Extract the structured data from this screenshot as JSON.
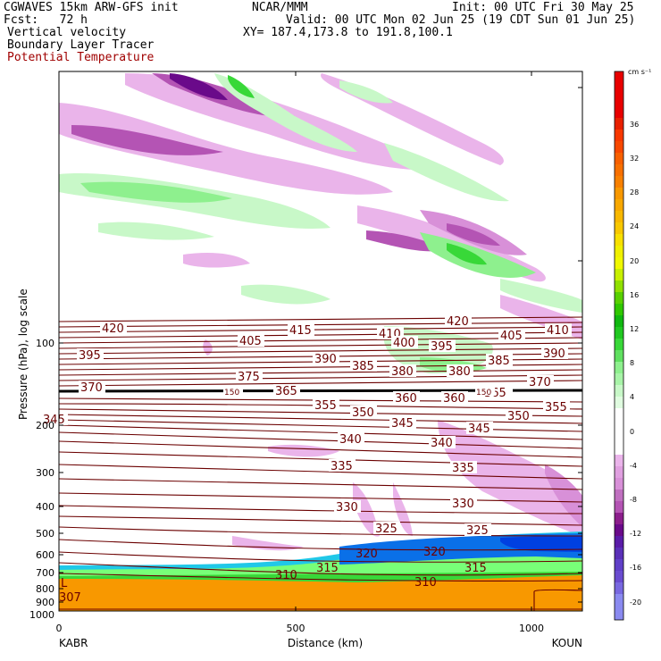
{
  "header": {
    "model": "CGWAVES 15km ARW-GFS init",
    "fcst": "Fcst:   72 h",
    "org": "NCAR/MMM",
    "init": "Init: 00 UTC Fri 30 May 25",
    "valid": "Valid: 00 UTC Mon 02 Jun 25 (19 CDT Sun 01 Jun 25)",
    "xy": "XY= 187.4,173.8 to 191.8,100.1",
    "field1": "Vertical velocity",
    "field2": "Boundary Layer Tracer",
    "field3": "Potential Temperature"
  },
  "colors": {
    "theta": "#6b0000",
    "positive": [
      "#ffffff",
      "#c8f8c8",
      "#8ef08e",
      "#38d838",
      "#10b810",
      "#f0f000",
      "#f8c800",
      "#f89800",
      "#f86000",
      "#e82000",
      "#e80000"
    ],
    "negative": [
      "#ffffff",
      "#eab4ea",
      "#d890d8",
      "#b454b4",
      "#8c1e8c",
      "#6a0a8a",
      "#5a1ca8",
      "#6a4cd0",
      "#8a8af0"
    ],
    "tracer": [
      "#78ff78",
      "#20c8e8",
      "#0a70e8",
      "#0040e0"
    ],
    "orange": "#f89800"
  },
  "chart_data": {
    "type": "heatmap",
    "title": "Vertical velocity / Boundary Layer Tracer / Potential Temperature",
    "xlabel": "Distance (km)",
    "ylabel": "Pressure (hPa), log scale",
    "x_ticks": [
      "0",
      "500",
      "1000"
    ],
    "x_endpoints": [
      "KABR",
      "KOUN"
    ],
    "y_ticks": [
      "100",
      "200",
      "300",
      "400",
      "500",
      "600",
      "700",
      "800",
      "900",
      "1000"
    ],
    "colorbar": {
      "units": "cm s⁻¹",
      "ticks": [
        "36",
        "32",
        "28",
        "24",
        "20",
        "16",
        "12",
        "8",
        "4",
        "0",
        "-4",
        "-8",
        "-12",
        "-16",
        "-20"
      ]
    },
    "theta_labels": [
      "420",
      "415",
      "410",
      "405",
      "400",
      "395",
      "390",
      "385",
      "380",
      "375",
      "370",
      "365",
      "360",
      "355",
      "350",
      "345",
      "340",
      "335",
      "330",
      "325",
      "320",
      "315",
      "310",
      "307",
      "150"
    ],
    "legend_letter": "L"
  }
}
